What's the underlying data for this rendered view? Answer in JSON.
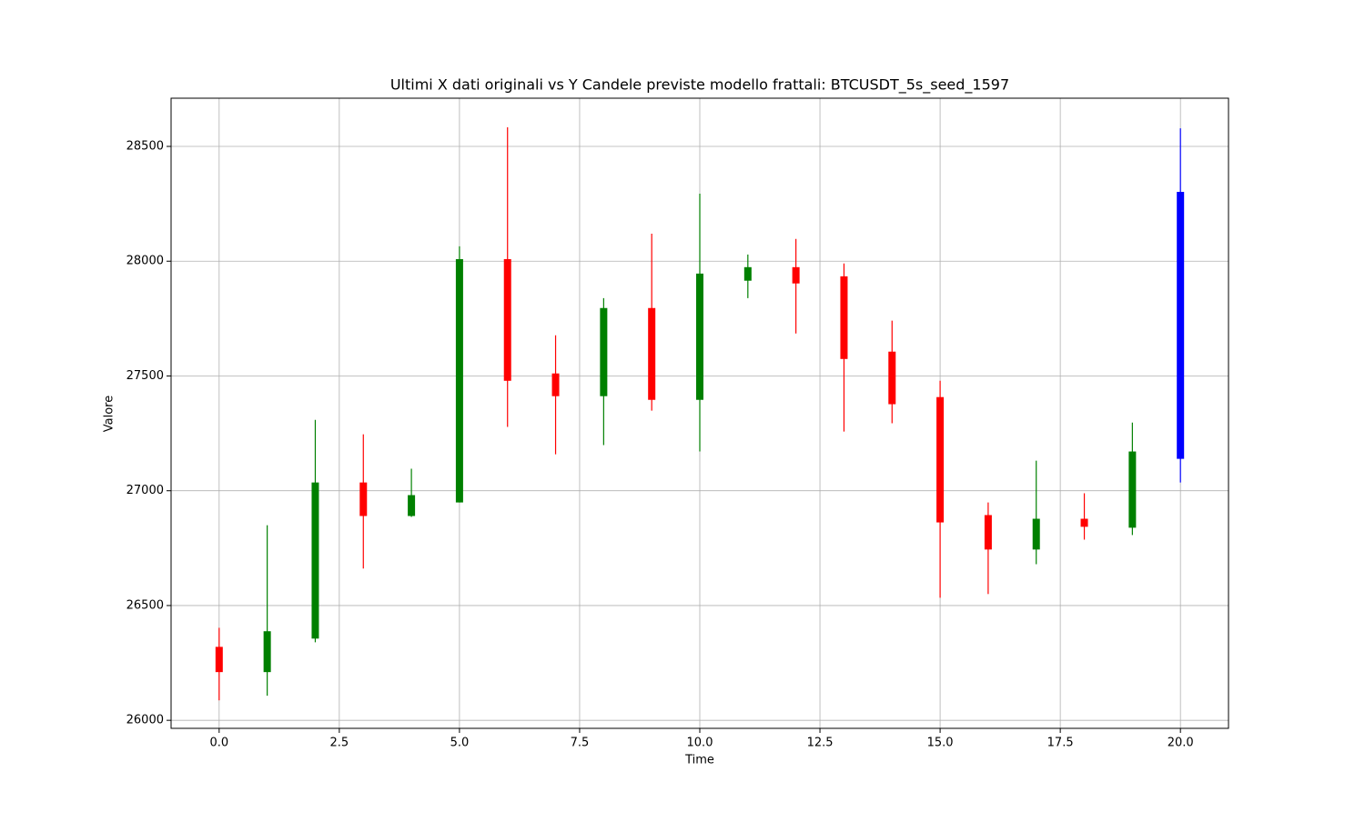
{
  "chart_data": {
    "type": "candlestick",
    "title": "Ultimi X dati originali vs Y Candele previste modello frattali: BTCUSDT_5s_seed_1597",
    "x_label": "Time",
    "y_label": "Valore",
    "x": [
      0,
      1,
      2,
      3,
      4,
      5,
      6,
      7,
      8,
      9,
      10,
      11,
      12,
      13,
      14,
      15,
      16,
      17,
      18,
      19,
      20
    ],
    "open": [
      26320,
      26210,
      26356,
      27036,
      26890,
      26949,
      28009,
      27511,
      27412,
      27796,
      27396,
      27915,
      27974,
      27934,
      27606,
      27408,
      26894,
      26744,
      26878,
      26839,
      27139
    ],
    "close": [
      26210,
      26388,
      27036,
      26890,
      26981,
      28009,
      27479,
      27412,
      27796,
      27396,
      27946,
      27974,
      27903,
      27574,
      27377,
      26862,
      26744,
      26878,
      26843,
      27171,
      28302
    ],
    "high": [
      26403,
      26850,
      27309,
      27246,
      27096,
      28065,
      28583,
      27677,
      27839,
      28120,
      28294,
      28029,
      28097,
      27990,
      27741,
      27479,
      26949,
      27131,
      26989,
      27297,
      28579
    ],
    "low": [
      26087,
      26107,
      26340,
      26661,
      26886,
      26949,
      27278,
      27159,
      27199,
      27349,
      27171,
      27839,
      27685,
      27258,
      27294,
      26534,
      26550,
      26680,
      26787,
      26807,
      27036
    ],
    "colors": [
      "red",
      "green",
      "green",
      "red",
      "green",
      "green",
      "red",
      "red",
      "green",
      "red",
      "green",
      "green",
      "red",
      "red",
      "red",
      "red",
      "red",
      "green",
      "red",
      "green",
      "blue"
    ],
    "xlim": [
      -1,
      21
    ],
    "ylim": [
      25965,
      28710
    ],
    "xticks": [
      {
        "value": 0,
        "label": "0.0"
      },
      2.5,
      {
        "value": 5,
        "label": "5.0"
      },
      7.5,
      {
        "value": 10,
        "label": "10.0"
      },
      12.5,
      {
        "value": 15,
        "label": "15.0"
      },
      17.5,
      {
        "value": 20,
        "label": "20.0"
      }
    ],
    "yticks": [
      26000,
      26500,
      27000,
      27500,
      28000,
      28500
    ],
    "grid": true
  }
}
